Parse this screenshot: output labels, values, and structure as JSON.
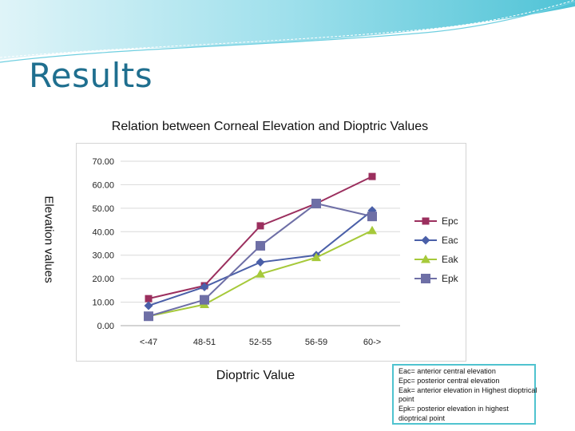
{
  "slide": {
    "title": "Results"
  },
  "chart_data": {
    "type": "line",
    "title": "Relation between Corneal Elevation and Dioptric Values",
    "xlabel": "Dioptric Value",
    "ylabel": "Elevation values",
    "categories": [
      "<-47",
      "48-51",
      "52-55",
      "56-59",
      "60->"
    ],
    "ylim": [
      0,
      70
    ],
    "yticks": [
      "0.00",
      "10.00",
      "20.00",
      "30.00",
      "40.00",
      "50.00",
      "60.00",
      "70.00"
    ],
    "grid": true,
    "legend_position": "right",
    "series": [
      {
        "name": "Epc",
        "values": [
          11.5,
          17,
          42.5,
          52,
          63.5
        ],
        "color": "#9b2f5e",
        "marker": "square"
      },
      {
        "name": "Eac",
        "values": [
          8.5,
          16.5,
          27,
          30,
          49
        ],
        "color": "#4a5fa8",
        "marker": "diamond"
      },
      {
        "name": "Eak",
        "values": [
          4,
          9,
          22,
          29,
          40.5
        ],
        "color": "#a6c93a",
        "marker": "triangle"
      },
      {
        "name": "Epk",
        "values": [
          4,
          11,
          34,
          52,
          46.5
        ],
        "color": "#6e6fa6",
        "marker": "bigsquare"
      }
    ]
  },
  "notes": [
    "Eac= anterior central elevation",
    "Epc= posterior central elevation",
    "Eak= anterior elevation in Highest dioptrical",
    "point",
    "Epk= posterior elevation in highest",
    "dioptrical point"
  ]
}
